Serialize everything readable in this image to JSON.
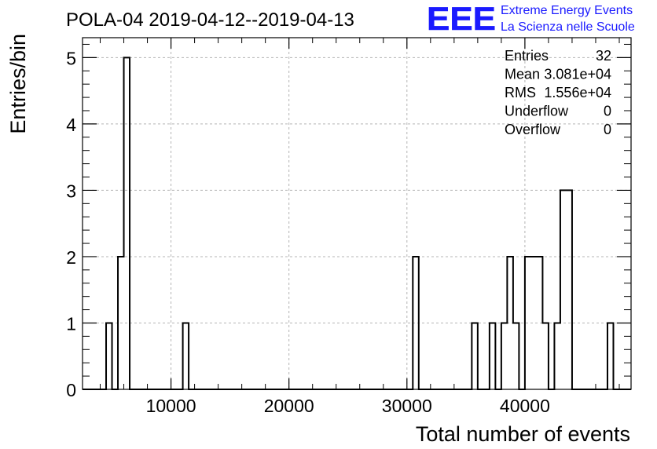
{
  "chart_data": {
    "type": "bar",
    "title": "POLA-04 2019-04-12--2019-04-13",
    "xlabel": "Total number of events",
    "ylabel": "Entries/bin",
    "xlim": [
      2500,
      49000
    ],
    "ylim": [
      0,
      5.3
    ],
    "grid": true,
    "xticks": [
      10000,
      20000,
      30000,
      40000
    ],
    "yticks": [
      0,
      1,
      2,
      3,
      4,
      5
    ],
    "bin_width": 500,
    "bins": [
      {
        "x0": 4500,
        "x1": 5000,
        "value": 1
      },
      {
        "x0": 5500,
        "x1": 6000,
        "value": 2
      },
      {
        "x0": 6000,
        "x1": 6500,
        "value": 5
      },
      {
        "x0": 11000,
        "x1": 11500,
        "value": 1
      },
      {
        "x0": 30500,
        "x1": 31000,
        "value": 2
      },
      {
        "x0": 35500,
        "x1": 36000,
        "value": 1
      },
      {
        "x0": 37000,
        "x1": 37500,
        "value": 1
      },
      {
        "x0": 38000,
        "x1": 38500,
        "value": 1
      },
      {
        "x0": 38500,
        "x1": 39000,
        "value": 2
      },
      {
        "x0": 39000,
        "x1": 39500,
        "value": 1
      },
      {
        "x0": 40000,
        "x1": 40500,
        "value": 2
      },
      {
        "x0": 40500,
        "x1": 41000,
        "value": 2
      },
      {
        "x0": 41000,
        "x1": 41500,
        "value": 2
      },
      {
        "x0": 41500,
        "x1": 42000,
        "value": 1
      },
      {
        "x0": 42500,
        "x1": 43000,
        "value": 1
      },
      {
        "x0": 43000,
        "x1": 43500,
        "value": 3
      },
      {
        "x0": 43500,
        "x1": 44000,
        "value": 3
      },
      {
        "x0": 47000,
        "x1": 47500,
        "value": 1
      }
    ],
    "stats": [
      {
        "label": "Entries",
        "value": "32"
      },
      {
        "label": "Mean",
        "value": "3.081e+04"
      },
      {
        "label": "RMS",
        "value": "1.556e+04"
      },
      {
        "label": "Underflow",
        "value": "0"
      },
      {
        "label": "Overflow",
        "value": "0"
      }
    ],
    "line_color": "#000000",
    "grid_color": "#b4b4b4"
  },
  "logo": {
    "letters": "EEE",
    "line1": "Extreme Energy Events",
    "line2": "La Scienza nelle Scuole",
    "color": "#1a1aff"
  }
}
